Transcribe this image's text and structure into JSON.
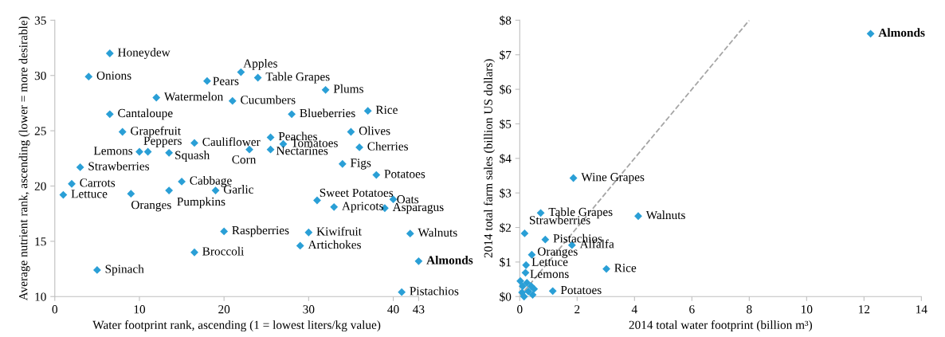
{
  "chart_data": [
    {
      "type": "scatter",
      "xlabel": "Water footprint rank, ascending (1 = lowest liters/kg value)",
      "ylabel": "Average nutrient rank, ascending (lower = more desirable)",
      "xlim": [
        0,
        43
      ],
      "xticks": [
        0,
        10,
        20,
        30,
        40,
        43
      ],
      "ylim": [
        10,
        35
      ],
      "yticks": [
        10,
        15,
        20,
        25,
        30,
        35
      ],
      "grid": false,
      "marker": "diamond",
      "series": [
        {
          "color": "#2a9fd6",
          "x": [
            6.5,
            4,
            12,
            6.5,
            8,
            10,
            11,
            13.5,
            16.5,
            3,
            2,
            1,
            9,
            13.5,
            15,
            19,
            20,
            16.5,
            5,
            18,
            22,
            24,
            21,
            32,
            28,
            37,
            25.5,
            27,
            23,
            25.5,
            35,
            36,
            34,
            38,
            31,
            33,
            40,
            39,
            30,
            29,
            42,
            41
          ],
          "values": [
            32,
            29.9,
            28,
            26.5,
            24.9,
            23.1,
            23.1,
            23,
            23.9,
            21.7,
            20.2,
            19.2,
            19.3,
            19.6,
            20.4,
            19.6,
            15.9,
            14,
            12.4,
            29.5,
            30.3,
            29.8,
            27.7,
            28.7,
            26.5,
            26.8,
            24.4,
            23.8,
            23.3,
            23.3,
            24.9,
            23.5,
            22,
            21,
            18.7,
            18.1,
            18.8,
            18,
            15.8,
            14.6,
            15.7,
            10.4
          ]
        },
        {
          "name": "Almonds",
          "color": "#2a9fd6",
          "x": [
            43
          ],
          "values": [
            13.2
          ]
        }
      ],
      "annotations": [
        {
          "text": "Honeydew",
          "x": 6.5,
          "y": 32
        },
        {
          "text": "Onions",
          "x": 4,
          "y": 29.9
        },
        {
          "text": "Watermelon",
          "x": 12,
          "y": 28
        },
        {
          "text": "Cantaloupe",
          "x": 6.5,
          "y": 26.5
        },
        {
          "text": "Grapefruit",
          "x": 8,
          "y": 24.9
        },
        {
          "text": "Lemons",
          "x": 10,
          "y": 23.1
        },
        {
          "text": "Peppers",
          "x": 11,
          "y": 23.1
        },
        {
          "text": "Squash",
          "x": 13.5,
          "y": 23
        },
        {
          "text": "Cauliflower",
          "x": 16.5,
          "y": 23.9
        },
        {
          "text": "Strawberries",
          "x": 3,
          "y": 21.7
        },
        {
          "text": "Carrots",
          "x": 2,
          "y": 20.2
        },
        {
          "text": "Lettuce",
          "x": 1,
          "y": 19.2
        },
        {
          "text": "Oranges",
          "x": 9,
          "y": 19.3
        },
        {
          "text": "Pumpkins",
          "x": 13.5,
          "y": 19.6
        },
        {
          "text": "Cabbage",
          "x": 15,
          "y": 20.4
        },
        {
          "text": "Garlic",
          "x": 19,
          "y": 19.6
        },
        {
          "text": "Raspberries",
          "x": 20,
          "y": 15.9
        },
        {
          "text": "Broccoli",
          "x": 16.5,
          "y": 14
        },
        {
          "text": "Spinach",
          "x": 5,
          "y": 12.4
        },
        {
          "text": "Pears",
          "x": 18,
          "y": 29.5
        },
        {
          "text": "Apples",
          "x": 22,
          "y": 30.3
        },
        {
          "text": "Table Grapes",
          "x": 24,
          "y": 29.8
        },
        {
          "text": "Cucumbers",
          "x": 21,
          "y": 27.7
        },
        {
          "text": "Plums",
          "x": 32,
          "y": 28.7
        },
        {
          "text": "Blueberries",
          "x": 28,
          "y": 26.5
        },
        {
          "text": "Rice",
          "x": 37,
          "y": 26.8
        },
        {
          "text": "Peaches",
          "x": 25.5,
          "y": 24.4
        },
        {
          "text": "Tomatoes",
          "x": 27,
          "y": 23.8
        },
        {
          "text": "Corn",
          "x": 23,
          "y": 23.3
        },
        {
          "text": "Nectarines",
          "x": 25.5,
          "y": 23.3
        },
        {
          "text": "Olives",
          "x": 35,
          "y": 24.9
        },
        {
          "text": "Cherries",
          "x": 36,
          "y": 23.5
        },
        {
          "text": "Figs",
          "x": 34,
          "y": 22
        },
        {
          "text": "Potatoes",
          "x": 38,
          "y": 21
        },
        {
          "text": "Sweet Potatoes",
          "x": 31,
          "y": 18.7
        },
        {
          "text": "Apricots",
          "x": 33,
          "y": 18.1
        },
        {
          "text": "Oats",
          "x": 40,
          "y": 18.8
        },
        {
          "text": "Asparagus",
          "x": 39,
          "y": 18
        },
        {
          "text": "Kiwifruit",
          "x": 30,
          "y": 15.8
        },
        {
          "text": "Artichokes",
          "x": 29,
          "y": 14.6
        },
        {
          "text": "Walnuts",
          "x": 42,
          "y": 15.7
        },
        {
          "text": "Pistachios",
          "x": 41,
          "y": 10.4
        }
      ]
    },
    {
      "type": "scatter",
      "xlabel": "2014 total water footprint (billion m³)",
      "ylabel": "2014 total farm sales (billion US dollars)",
      "xlim": [
        0,
        14
      ],
      "xticks": [
        0,
        2,
        4,
        6,
        8,
        10,
        12,
        14
      ],
      "ylim": [
        0,
        8
      ],
      "yticks": [
        {
          "value": 0,
          "label": "$0"
        },
        {
          "value": 1,
          "label": "$1"
        },
        {
          "value": 2,
          "label": "$2"
        },
        {
          "value": 3,
          "label": "$3"
        },
        {
          "value": 4,
          "label": "$4"
        },
        {
          "value": 5,
          "label": "$5"
        },
        {
          "value": 6,
          "label": "$6"
        },
        {
          "value": 7,
          "label": "$7"
        },
        {
          "value": 8,
          "label": "$8"
        }
      ],
      "grid": false,
      "marker": "diamond",
      "series": [
        {
          "type": "line",
          "color": "#a6a6a6",
          "line_style": "dashed",
          "marker": "none",
          "x": [
            0,
            8
          ],
          "values": [
            0,
            8
          ]
        },
        {
          "color": "#2a9fd6",
          "x": [
            1.87,
            0.73,
            4.13,
            0.17,
            0.89,
            1.82,
            0.42,
            0.22,
            0.2,
            3.02,
            1.15,
            0.02,
            0.1,
            0.25,
            0.4,
            0.3,
            0.08,
            0.5,
            0.45,
            0.15
          ],
          "values": [
            3.43,
            2.42,
            2.33,
            1.83,
            1.65,
            1.49,
            1.21,
            0.91,
            0.69,
            0.8,
            0.16,
            0.45,
            0.3,
            0.4,
            0.3,
            0.15,
            0.12,
            0.22,
            0.05,
            0
          ]
        },
        {
          "name": "Almonds",
          "color": "#2a9fd6",
          "x": [
            12.23
          ],
          "values": [
            7.61
          ]
        }
      ],
      "annotations": [
        {
          "text": "Wine Grapes",
          "x": 1.87,
          "y": 3.43
        },
        {
          "text": "Table Grapes",
          "x": 0.73,
          "y": 2.42
        },
        {
          "text": "Walnuts",
          "x": 4.13,
          "y": 2.33
        },
        {
          "text": "Strawberries",
          "x": 0.17,
          "y": 1.83
        },
        {
          "text": "Pistachios",
          "x": 0.89,
          "y": 1.65
        },
        {
          "text": "Alfalfa",
          "x": 1.82,
          "y": 1.49
        },
        {
          "text": "Oranges",
          "x": 0.42,
          "y": 1.21
        },
        {
          "text": "Lettuce",
          "x": 0.22,
          "y": 0.91
        },
        {
          "text": "Lemons",
          "x": 0.2,
          "y": 0.69
        },
        {
          "text": "Rice",
          "x": 3.02,
          "y": 0.8
        },
        {
          "text": "Potatoes",
          "x": 1.15,
          "y": 0.16
        }
      ]
    }
  ]
}
